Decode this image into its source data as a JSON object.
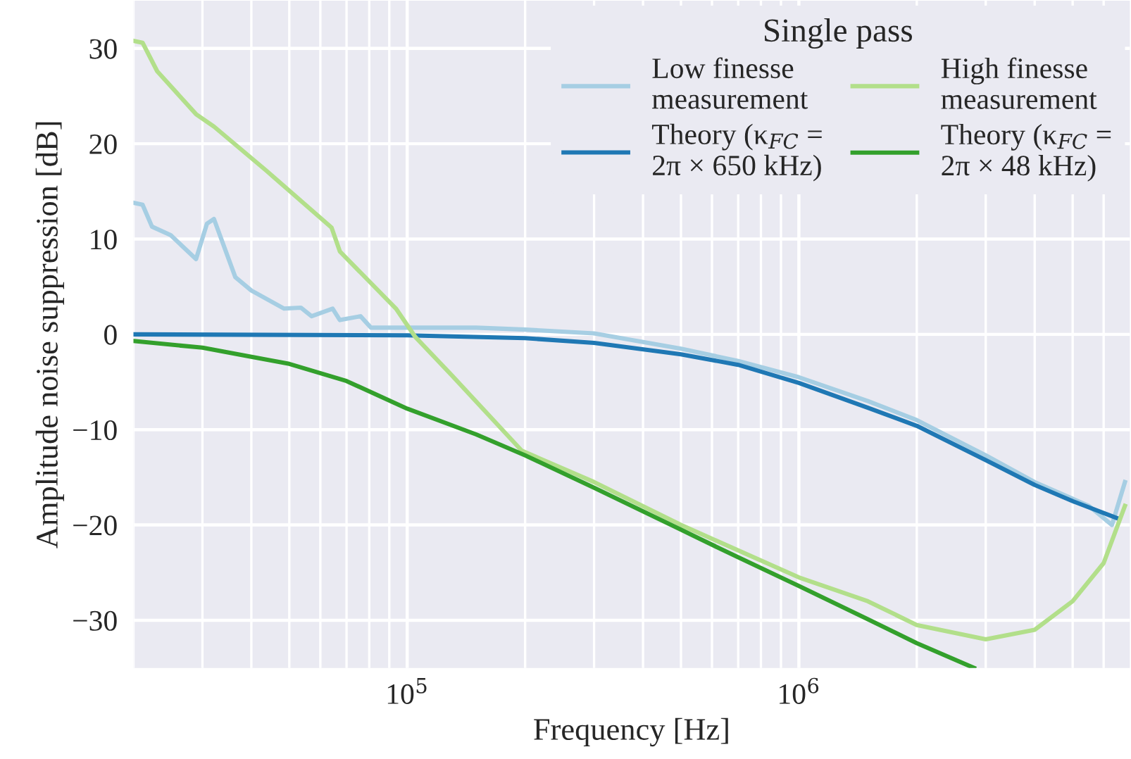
{
  "chart_data": {
    "type": "line",
    "xlabel": "Frequency [Hz]",
    "ylabel": "Amplitude noise suppression [dB]",
    "legend_title": "Single pass",
    "legend": "top right",
    "grid": true,
    "log": "x",
    "xlim": [
      20000,
      7000000
    ],
    "ylim": [
      -35,
      35
    ],
    "xticks": [
      {
        "value": 20000,
        "label": null
      },
      {
        "value": 30000,
        "label": null
      },
      {
        "value": 40000,
        "label": null
      },
      {
        "value": 50000,
        "label": null
      },
      {
        "value": 60000,
        "label": null
      },
      {
        "value": 70000,
        "label": null
      },
      {
        "value": 80000,
        "label": null
      },
      {
        "value": 90000,
        "label": null
      },
      {
        "value": 100000,
        "label": "10$^{5}$"
      },
      {
        "value": 200000,
        "label": null
      },
      {
        "value": 300000,
        "label": null
      },
      {
        "value": 400000,
        "label": null
      },
      {
        "value": 500000,
        "label": null
      },
      {
        "value": 600000,
        "label": null
      },
      {
        "value": 700000,
        "label": null
      },
      {
        "value": 800000,
        "label": null
      },
      {
        "value": 900000,
        "label": null
      },
      {
        "value": 1000000,
        "label": "10$^{6}$"
      },
      {
        "value": 2000000,
        "label": null
      },
      {
        "value": 3000000,
        "label": null
      },
      {
        "value": 4000000,
        "label": null
      },
      {
        "value": 5000000,
        "label": null
      },
      {
        "value": 6000000,
        "label": null
      }
    ],
    "yticks": [
      {
        "value": -30,
        "label": "−30"
      },
      {
        "value": -20,
        "label": "−20"
      },
      {
        "value": -10,
        "label": "−10"
      },
      0,
      10,
      20,
      30
    ],
    "series": [
      {
        "name": "Low finesse\nmeasurement",
        "color": "#a6cee3",
        "x": [
          20000,
          21100,
          22300,
          24900,
          28900,
          30800,
          32100,
          36400,
          40000,
          48500,
          53500,
          57000,
          64500,
          67300,
          76000,
          80800,
          105000,
          150000,
          200000,
          300000,
          500000,
          700000,
          1000000,
          1500000,
          2000000,
          3000000,
          4000000,
          5500000,
          6300000,
          6800000
        ],
        "values": [
          13.8,
          13.6,
          11.3,
          10.4,
          7.9,
          11.6,
          12.1,
          6.0,
          4.6,
          2.7,
          2.8,
          1.9,
          2.7,
          1.5,
          1.9,
          0.7,
          0.7,
          0.7,
          0.5,
          0.1,
          -1.5,
          -2.8,
          -4.5,
          -7.0,
          -9.0,
          -12.7,
          -15.5,
          -18.0,
          -20.0,
          -15.5
        ]
      },
      {
        "name": "Theory (κ$_{FC}$ =\n2π × 650 kHz)",
        "color": "#1f78b4",
        "x": [
          20000,
          100000,
          200000,
          300000,
          500000,
          700000,
          1000000,
          1500000,
          2000000,
          3000000,
          4000000,
          5000000,
          6500000
        ],
        "values": [
          0,
          -0.1,
          -0.4,
          -0.9,
          -2.1,
          -3.2,
          -5.1,
          -7.7,
          -9.6,
          -13.2,
          -15.8,
          -17.5,
          -19.3
        ]
      },
      {
        "name": "High finesse\nmeasurement",
        "color": "#b2df8a",
        "x": [
          20000,
          21100,
          23000,
          28900,
          32100,
          43600,
          64100,
          67300,
          93600,
          105000,
          130000,
          196000,
          300000,
          500000,
          1000000,
          1500000,
          2000000,
          3000000,
          4000000,
          5000000,
          6000000,
          6800000
        ],
        "values": [
          30.8,
          30.6,
          27.6,
          23.1,
          21.8,
          17.2,
          11.2,
          8.7,
          2.7,
          -0.3,
          -4.3,
          -12.2,
          -15.5,
          -20.0,
          -25.5,
          -28.0,
          -30.5,
          -32.0,
          -31.0,
          -28.0,
          -24.0,
          -18.0
        ]
      },
      {
        "name": "Theory (κ$_{FC}$ =\n2π × 48 kHz)",
        "color": "#33a02c",
        "x": [
          20000,
          30000,
          50000,
          70000,
          100000,
          150000,
          200000,
          300000,
          500000,
          700000,
          1000000,
          1500000,
          2000000,
          2800000
        ],
        "values": [
          -0.7,
          -1.4,
          -3.1,
          -4.9,
          -7.8,
          -10.5,
          -12.7,
          -16.1,
          -20.5,
          -23.4,
          -26.4,
          -29.9,
          -32.4,
          -35.0
        ]
      }
    ]
  }
}
